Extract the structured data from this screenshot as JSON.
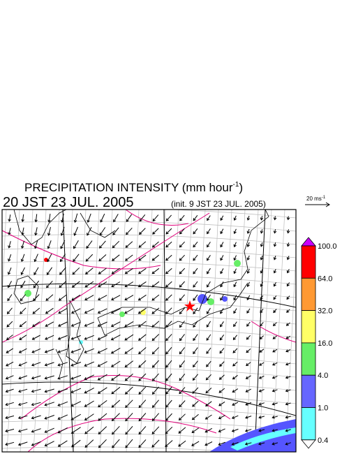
{
  "title": {
    "text": "PRECIPITATION INTENSITY (mm hour",
    "superscript": "-1",
    "close": ")"
  },
  "valid_time": "20 JST 23 JUL. 2005",
  "init_time": "(init. 9 JST 23 JUL. 2005)",
  "vector_legend": {
    "text": "20 ms",
    "superscript": "-1"
  },
  "colorbar": {
    "labels": [
      "100.0",
      "64.0",
      "32.0",
      "16.0",
      "4.0",
      "1.0",
      "0.4"
    ],
    "colors": [
      "#ff0000",
      "#ff9933",
      "#ffff66",
      "#66ee66",
      "#6666ff",
      "#66ffff"
    ],
    "over_color": "#cc00ff",
    "under_color": "#ffffff"
  }
}
